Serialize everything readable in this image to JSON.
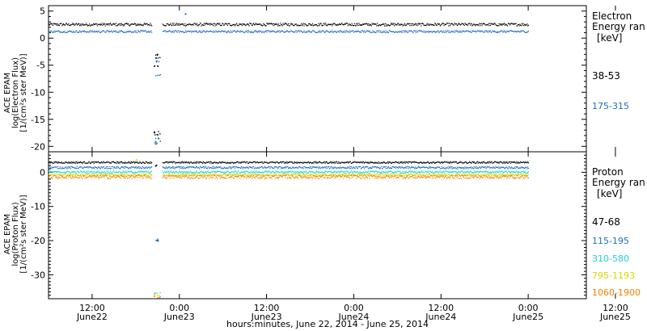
{
  "chart_data": [
    {
      "type": "scatter",
      "title": "",
      "ylabel_lines": [
        "ACE EPAM",
        "log(Electron Flux)",
        "[1/(cm²s ster MeV)]"
      ],
      "ylim": [
        -21,
        6
      ],
      "yticks": [
        5,
        0,
        -5,
        -10,
        -15,
        -20
      ],
      "legend": {
        "title_lines": [
          "Electron",
          "Energy ran",
          "[keV]"
        ],
        "placement": "right"
      },
      "series": [
        {
          "name": "38-53",
          "color": "#000000",
          "baseline": 2.6,
          "spread": 0.25,
          "gap_values": [
            -3.0,
            -3.6,
            -5.0,
            -17.3,
            -17.7
          ]
        },
        {
          "name": "175-315",
          "color": "#1e6fc0",
          "baseline": 1.3,
          "spread": 0.2,
          "gap_values": [
            -4.2,
            -6.8,
            -18.5,
            -19.0,
            -19.4
          ],
          "outlier": [
            24.75,
            4.6
          ]
        }
      ]
    },
    {
      "type": "scatter",
      "title": "",
      "ylabel_lines": [
        "ACE EPAM",
        "log(Proton Flux)",
        "[1/(cm²s ster MeV)]"
      ],
      "ylim": [
        -37,
        6
      ],
      "yticks": [
        0,
        -10,
        -20,
        -30
      ],
      "legend": {
        "title_lines": [
          "Proton",
          "Energy ran",
          "[keV]"
        ],
        "placement": "right"
      },
      "series": [
        {
          "name": "47-68",
          "color": "#000000",
          "baseline": 3.0,
          "spread": 0.25,
          "gap_values": [
            2.0
          ]
        },
        {
          "name": "115-195",
          "color": "#1e6fc0",
          "baseline": 1.5,
          "spread": 0.3,
          "gap_values": [
            -19.6,
            -19.8
          ]
        },
        {
          "name": "310-580",
          "color": "#22d0d0",
          "baseline": 0.2,
          "spread": 0.3,
          "gap_values": [
            -35.3
          ]
        },
        {
          "name": "795-1193",
          "color": "#d8d800",
          "baseline": -0.6,
          "spread": 0.3,
          "gap_values": [
            -35.8
          ],
          "outlier": [
            18.0,
            3.8
          ]
        },
        {
          "name": "1060-1900",
          "color": "#f08000",
          "baseline": -1.2,
          "spread": 0.5,
          "gap_values": [
            -36.3
          ]
        }
      ]
    }
  ],
  "x_axis": {
    "range_hours": [
      6,
      80
    ],
    "data_span_hours": [
      6,
      72
    ],
    "gap_hours": [
      20.2,
      21.6
    ],
    "ticks": [
      {
        "hour": 12,
        "time": "12:00",
        "date": "June22"
      },
      {
        "hour": 24,
        "time": "0:00",
        "date": "June23"
      },
      {
        "hour": 36,
        "time": "12:00",
        "date": "June23"
      },
      {
        "hour": 48,
        "time": "0:00",
        "date": "June24"
      },
      {
        "hour": 60,
        "time": "12:00",
        "date": "June24"
      },
      {
        "hour": 72,
        "time": "0:00",
        "date": "June25"
      },
      {
        "hour": 84,
        "time": "12:00",
        "date": "June25"
      }
    ],
    "xlabel": "hours:minutes, June 22, 2014 - June 25, 2014"
  }
}
